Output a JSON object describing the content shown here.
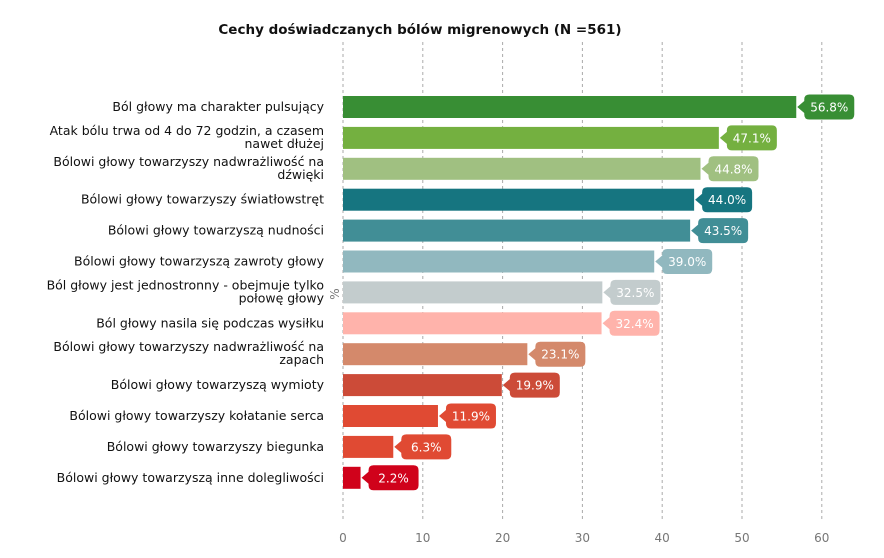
{
  "chart_data": {
    "type": "bar",
    "orientation": "horizontal",
    "title": "Cechy doświadczanych bólów migrenowych (N =561)",
    "xlabel": "",
    "ylabel": "%",
    "xlim": [
      0,
      65
    ],
    "xticks": [
      0,
      10,
      20,
      30,
      40,
      50,
      60
    ],
    "grid": true,
    "categories": [
      [
        "Ból głowy ma charakter pulsujący"
      ],
      [
        "Atak bólu trwa od 4 do 72 godzin, a czasem",
        "nawet dłużej"
      ],
      [
        "Bólowi głowy towarzyszy nadwrażliwość na",
        "dźwięki"
      ],
      [
        "Bólowi głowy towarzyszy światłowstręt"
      ],
      [
        "Bólowi głowy towarzyszą nudności"
      ],
      [
        "Bólowi głowy towarzyszą zawroty głowy"
      ],
      [
        "Ból głowy jest jednostronny - obejmuje tylko",
        "połowę głowy"
      ],
      [
        "Ból głowy nasila się podczas wysiłku"
      ],
      [
        "Bólowi głowy towarzyszy nadwrażliwość na",
        "zapach"
      ],
      [
        "Bólowi głowy towarzyszą wymioty"
      ],
      [
        "Bólowi głowy towarzyszy kołatanie serca"
      ],
      [
        "Bólowi głowy towarzyszy biegunka"
      ],
      [
        "Bólowi głowy towarzyszą inne dolegliwości"
      ]
    ],
    "values": [
      56.8,
      47.1,
      44.8,
      44.0,
      43.5,
      39.0,
      32.5,
      32.4,
      23.1,
      19.9,
      11.9,
      6.3,
      2.2
    ],
    "labels": [
      "56.8%",
      "47.1%",
      "44.8%",
      "44.0%",
      "43.5%",
      "39.0%",
      "32.5%",
      "32.4%",
      "23.1%",
      "19.9%",
      "11.9%",
      "6.3%",
      "2.2%"
    ],
    "colors": [
      "#388e34",
      "#74b040",
      "#a0c081",
      "#167580",
      "#418e96",
      "#91b8bf",
      "#c3cccd",
      "#ffb3ab",
      "#d4896b",
      "#cc4b38",
      "#e04a33",
      "#e04a33",
      "#d0021b"
    ]
  }
}
